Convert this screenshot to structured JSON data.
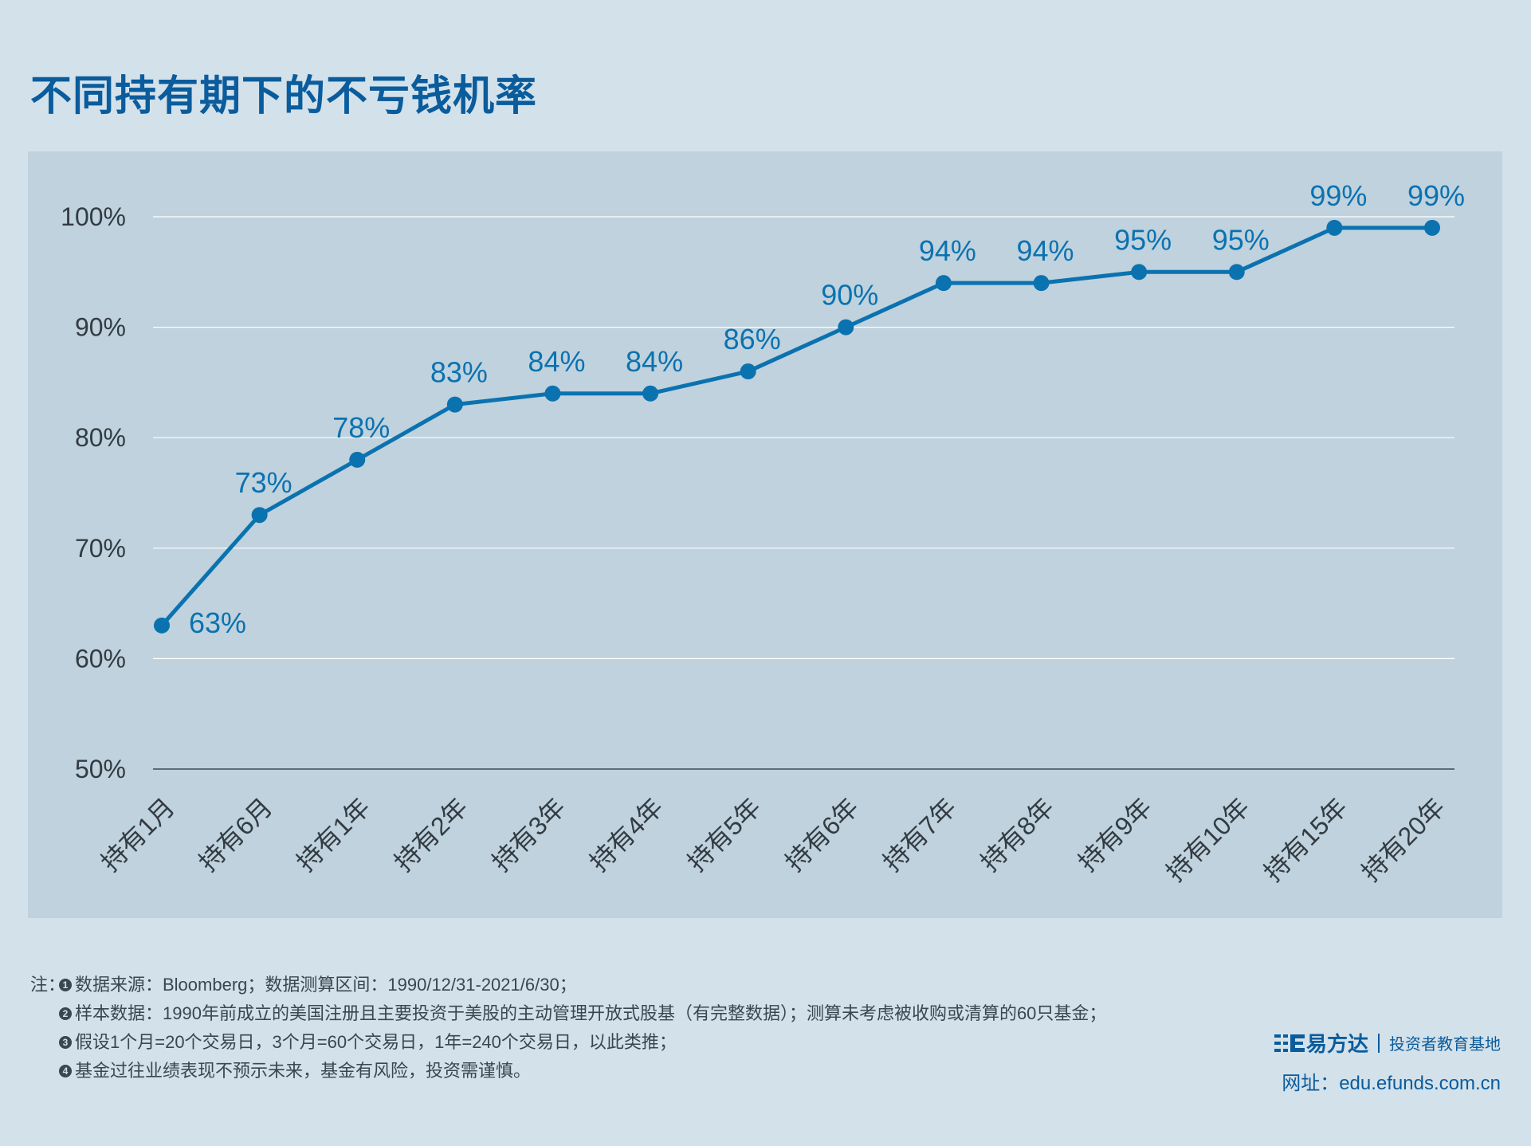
{
  "title": "不同持有期下的不亏钱机率",
  "chart_data": {
    "type": "line",
    "title": "不同持有期下的不亏钱机率",
    "categories": [
      "持有1月",
      "持有6月",
      "持有1年",
      "持有2年",
      "持有3年",
      "持有4年",
      "持有5年",
      "持有6年",
      "持有7年",
      "持有8年",
      "持有9年",
      "持有10年",
      "持有15年",
      "持有20年"
    ],
    "values": [
      63,
      73,
      78,
      83,
      84,
      84,
      86,
      90,
      94,
      94,
      95,
      95,
      99,
      99
    ],
    "data_labels": [
      "63%",
      "73%",
      "78%",
      "83%",
      "84%",
      "84%",
      "86%",
      "90%",
      "94%",
      "94%",
      "95%",
      "95%",
      "99%",
      "99%"
    ],
    "y_ticks": [
      50,
      60,
      70,
      80,
      90,
      100
    ],
    "y_tick_labels": [
      "50%",
      "60%",
      "70%",
      "80%",
      "90%",
      "100%"
    ],
    "ylim": [
      50,
      100
    ],
    "grid": true,
    "line_color": "#0b72b0",
    "label_color": "#0b72b0"
  },
  "notes": {
    "prefix": "注：",
    "items": [
      {
        "num": "1",
        "text": "数据来源：Bloomberg；数据测算区间：1990/12/31-2021/6/30；"
      },
      {
        "num": "2",
        "text": "样本数据：1990年前成立的美国注册且主要投资于美股的主动管理开放式股基（有完整数据）；测算未考虑被收购或清算的60只基金；"
      },
      {
        "num": "3",
        "text": "假设1个月=20个交易日，3个月=60个交易日，1年=240个交易日，以此类推；"
      },
      {
        "num": "4",
        "text": "基金过往业绩表现不预示未来，基金有风险，投资需谨慎。"
      }
    ]
  },
  "brand": {
    "name": "易方达",
    "subtitle": "投资者教育基地",
    "url": "网址：edu.efunds.com.cn",
    "color": "#0a5c9c"
  }
}
